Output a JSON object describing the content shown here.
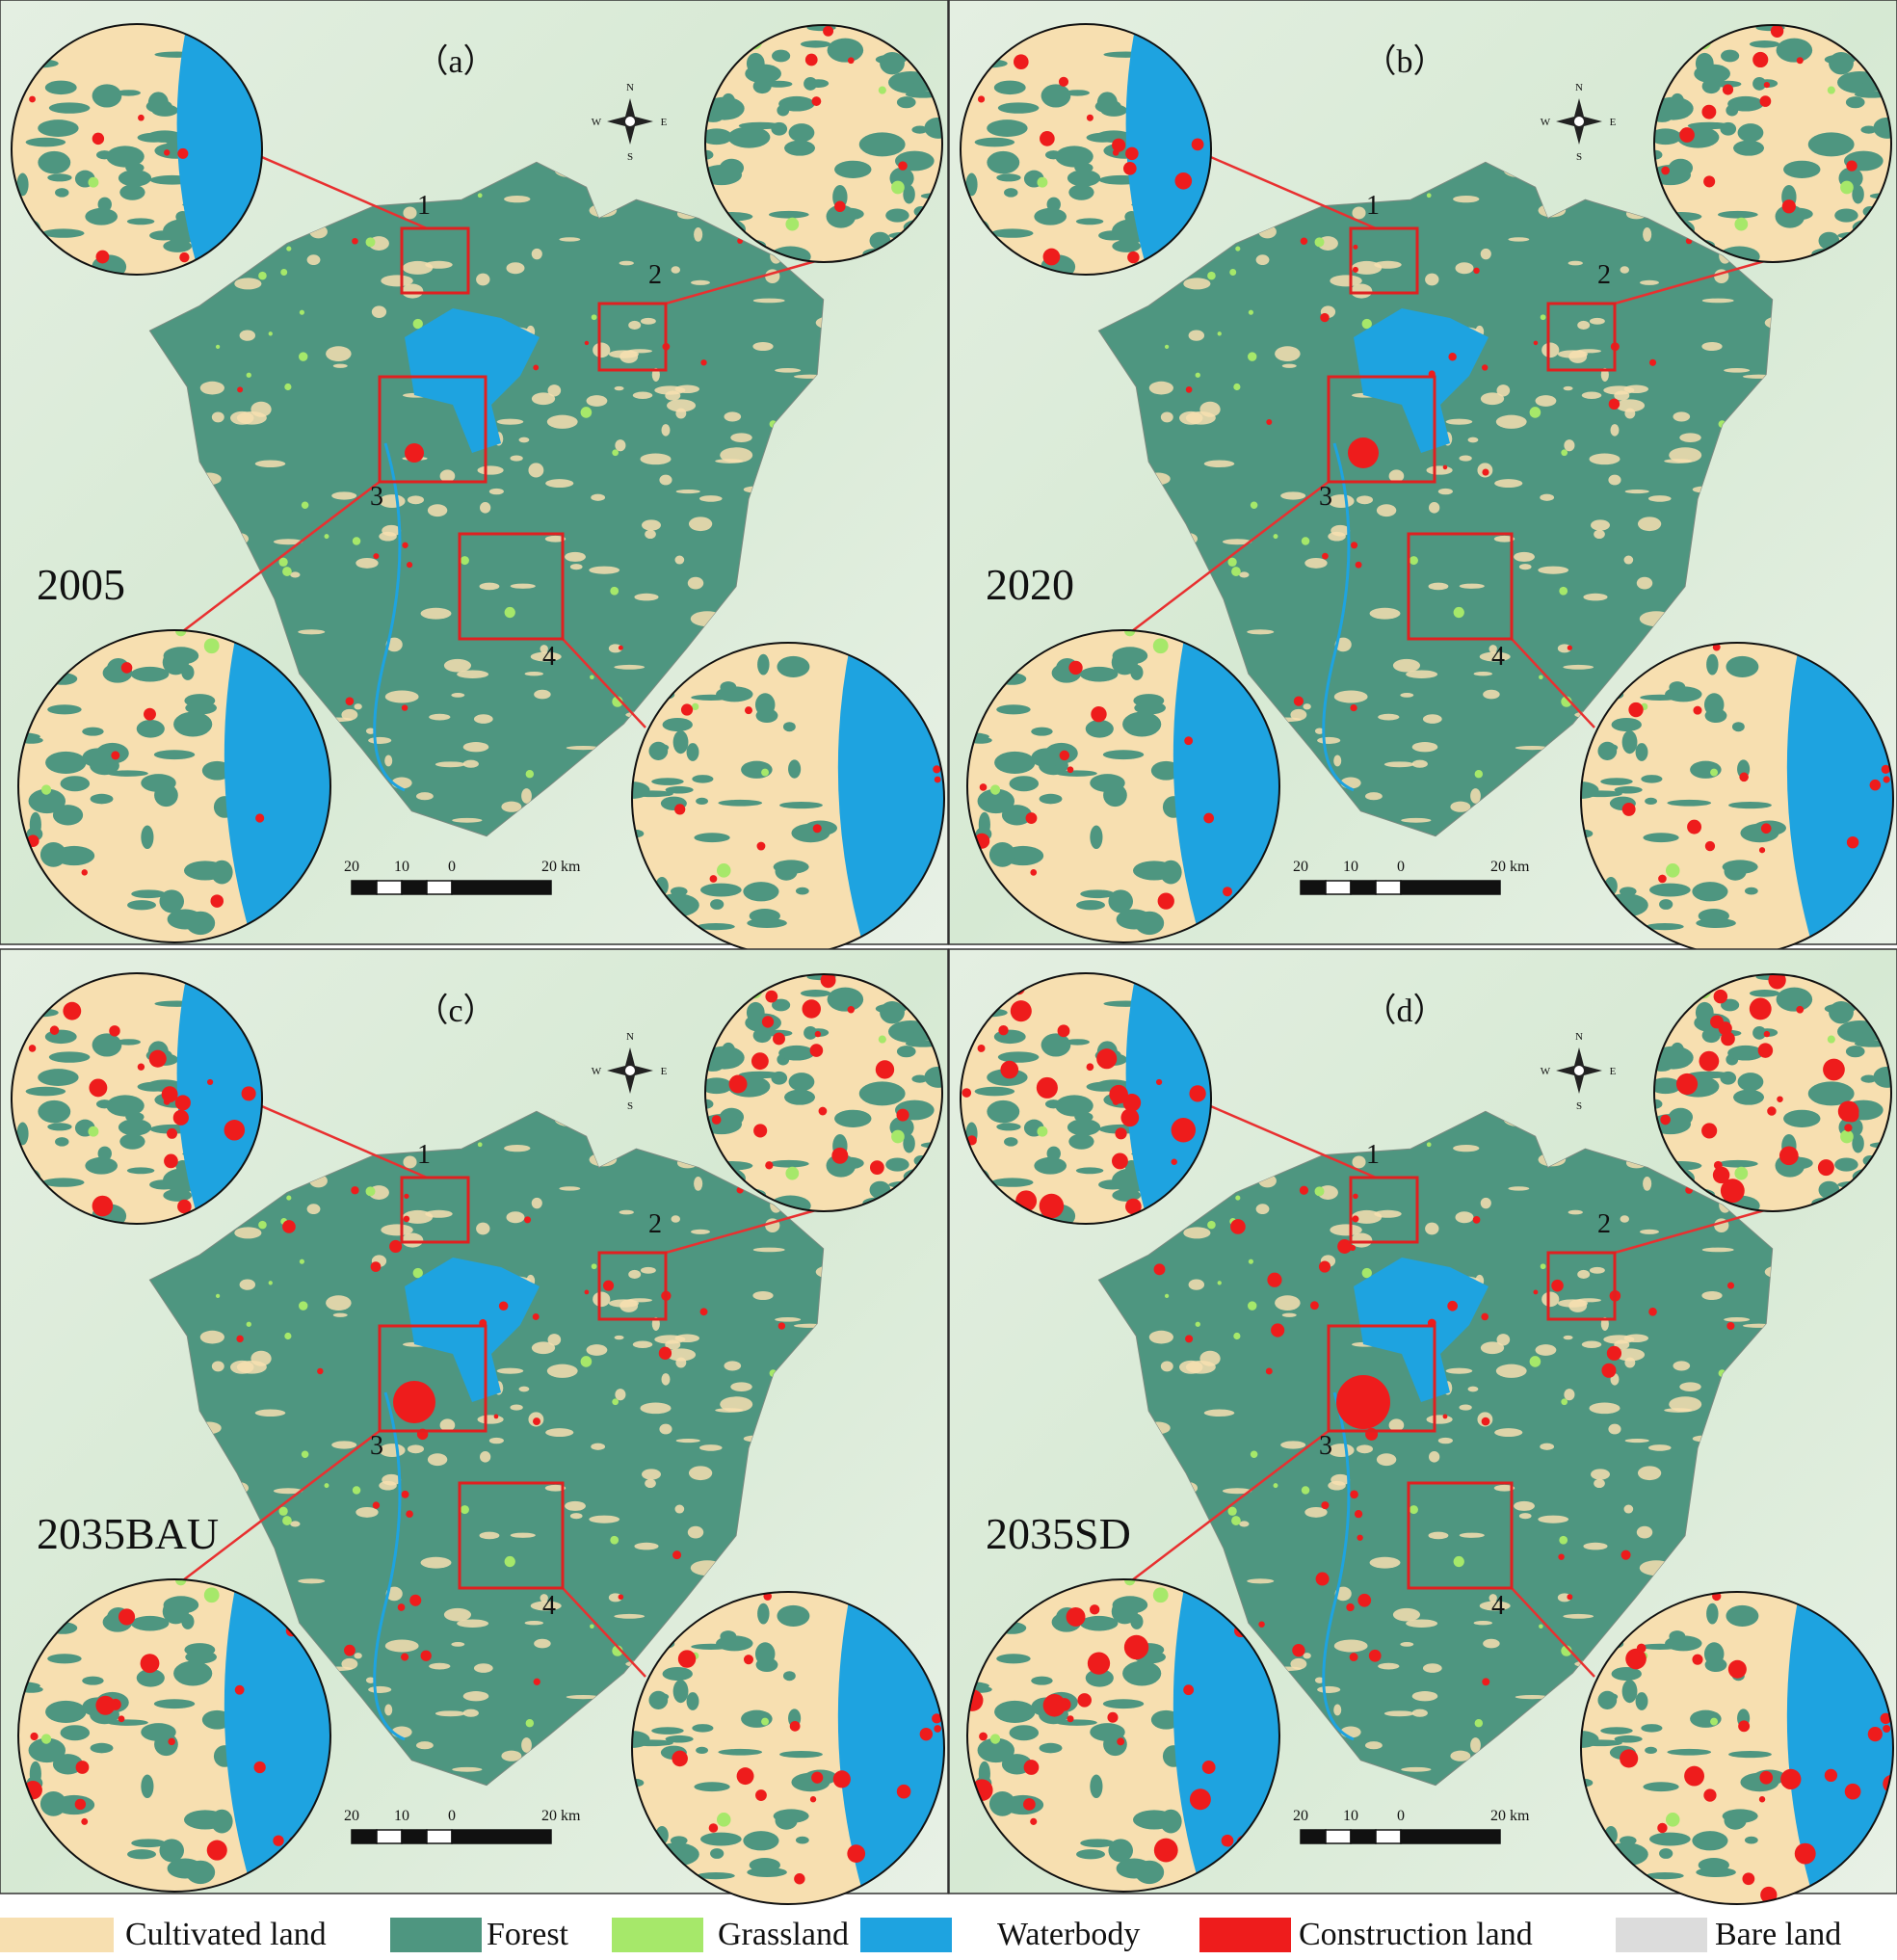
{
  "panels": [
    {
      "label": "（a）",
      "year": "2005"
    },
    {
      "label": "（b）",
      "year": "2020"
    },
    {
      "label": "（c）",
      "year": "2035BAU"
    },
    {
      "label": "（d）",
      "year": "2035SD"
    }
  ],
  "box_labels": [
    "1",
    "2",
    "3",
    "4"
  ],
  "compass": {
    "n": "N",
    "s": "S",
    "w": "W",
    "e": "E"
  },
  "scale_labels": [
    "20",
    "10",
    "0",
    "20 km"
  ],
  "legend": [
    {
      "label": "Cultivated land",
      "color": "#f7dfb0"
    },
    {
      "label": "Forest",
      "color": "#4e9680"
    },
    {
      "label": "Grassland",
      "color": "#a6e86a"
    },
    {
      "label": "Waterbody",
      "color": "#1ea3e0"
    },
    {
      "label": "Construction land",
      "color": "#ee1c1c"
    },
    {
      "label": "Bare land",
      "color": "#dcdcdc"
    }
  ]
}
